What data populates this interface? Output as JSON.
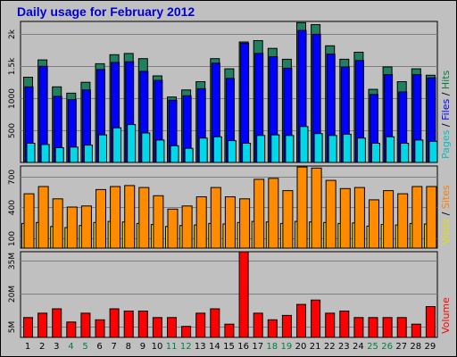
{
  "chart_data": {
    "type": "bar",
    "title": "Daily usage for February 2012",
    "categories": [
      "1",
      "2",
      "3",
      "4",
      "5",
      "6",
      "7",
      "8",
      "9",
      "10",
      "11",
      "12",
      "13",
      "14",
      "15",
      "16",
      "17",
      "18",
      "19",
      "20",
      "21",
      "22",
      "23",
      "24",
      "25",
      "26",
      "27",
      "28",
      "29"
    ],
    "weekend_days": [
      "4",
      "5",
      "11",
      "12",
      "18",
      "19",
      "25",
      "26"
    ],
    "panels": [
      {
        "id": "pages-files-hits",
        "ylim": [
          0,
          2200
        ],
        "ticks": [
          {
            "value": 500,
            "label": "500"
          },
          {
            "value": 1000,
            "label": "1000"
          },
          {
            "value": 1500,
            "label": "1.5k"
          },
          {
            "value": 2000,
            "label": "2k"
          }
        ],
        "legend": [
          {
            "text": "Pages",
            "color": "#00c0c0"
          },
          {
            "text": " / ",
            "color": "#000000"
          },
          {
            "text": "Files",
            "color": "#0000ff"
          },
          {
            "text": " / ",
            "color": "#000000"
          },
          {
            "text": "Hits",
            "color": "#008040"
          }
        ],
        "series": [
          {
            "name": "Hits",
            "color": "#208060",
            "values": [
              1330,
              1600,
              1180,
              1080,
              1250,
              1540,
              1680,
              1700,
              1620,
              1350,
              1020,
              1130,
              1260,
              1620,
              1460,
              1880,
              1900,
              1780,
              1610,
              2180,
              2150,
              1820,
              1610,
              1720,
              1140,
              1490,
              1260,
              1460,
              1360
            ]
          },
          {
            "name": "Files",
            "color": "#0000ff",
            "values": [
              1180,
              1500,
              1030,
              980,
              1130,
              1450,
              1560,
              1570,
              1420,
              1280,
              970,
              1040,
              1150,
              1550,
              1310,
              1860,
              1700,
              1650,
              1470,
              2060,
              2000,
              1690,
              1490,
              1590,
              1060,
              1370,
              1100,
              1370,
              1320
            ]
          },
          {
            "name": "Pages",
            "color": "#00d8e8",
            "values": [
              300,
              280,
              230,
              240,
              270,
              430,
              540,
              590,
              460,
              350,
              260,
              220,
              380,
              400,
              340,
              300,
              420,
              430,
              420,
              560,
              450,
              420,
              440,
              380,
              300,
              400,
              300,
              350,
              330
            ]
          }
        ]
      },
      {
        "id": "visits-sites",
        "ylim": [
          0,
          800
        ],
        "ticks": [
          {
            "value": 100,
            "label": "100"
          },
          {
            "value": 400,
            "label": "400"
          },
          {
            "value": 700,
            "label": "700"
          }
        ],
        "legend": [
          {
            "text": "Visits",
            "color": "#e0e000"
          },
          {
            "text": " / ",
            "color": "#000000"
          },
          {
            "text": "Sites",
            "color": "#ff8000"
          }
        ],
        "series": [
          {
            "name": "Visits",
            "color": "#ffd000",
            "values": [
              240,
              250,
              210,
              200,
              220,
              250,
              260,
              255,
              240,
              230,
              210,
              220,
              225,
              240,
              235,
              250,
              260,
              255,
              240,
              260,
              255,
              250,
              240,
              245,
              215,
              230,
              225,
              240,
              235
            ]
          },
          {
            "name": "Sites",
            "color": "#ff8c00",
            "values": [
              530,
              600,
              480,
              400,
              410,
              570,
              600,
              610,
              590,
              510,
              380,
              410,
              500,
              590,
              500,
              480,
              670,
              680,
              560,
              790,
              780,
              660,
              580,
              590,
              470,
              560,
              530,
              600,
              600
            ]
          }
        ]
      },
      {
        "id": "volume",
        "ylim": [
          0,
          39
        ],
        "ticks": [
          {
            "value": 5,
            "label": "5M"
          },
          {
            "value": 20,
            "label": "20M"
          },
          {
            "value": 35,
            "label": "35M"
          }
        ],
        "legend": [
          {
            "text": "Volume",
            "color": "#ff0000"
          }
        ],
        "series": [
          {
            "name": "Volume",
            "color": "#ff0000",
            "values": [
              9,
              11,
              13,
              7,
              11,
              8,
              13,
              12,
              12,
              9,
              9,
              5,
              11,
              13,
              6,
              39,
              11,
              8,
              10,
              15,
              17,
              11,
              12,
              9,
              9,
              9,
              9,
              6,
              14
            ]
          }
        ]
      }
    ]
  }
}
